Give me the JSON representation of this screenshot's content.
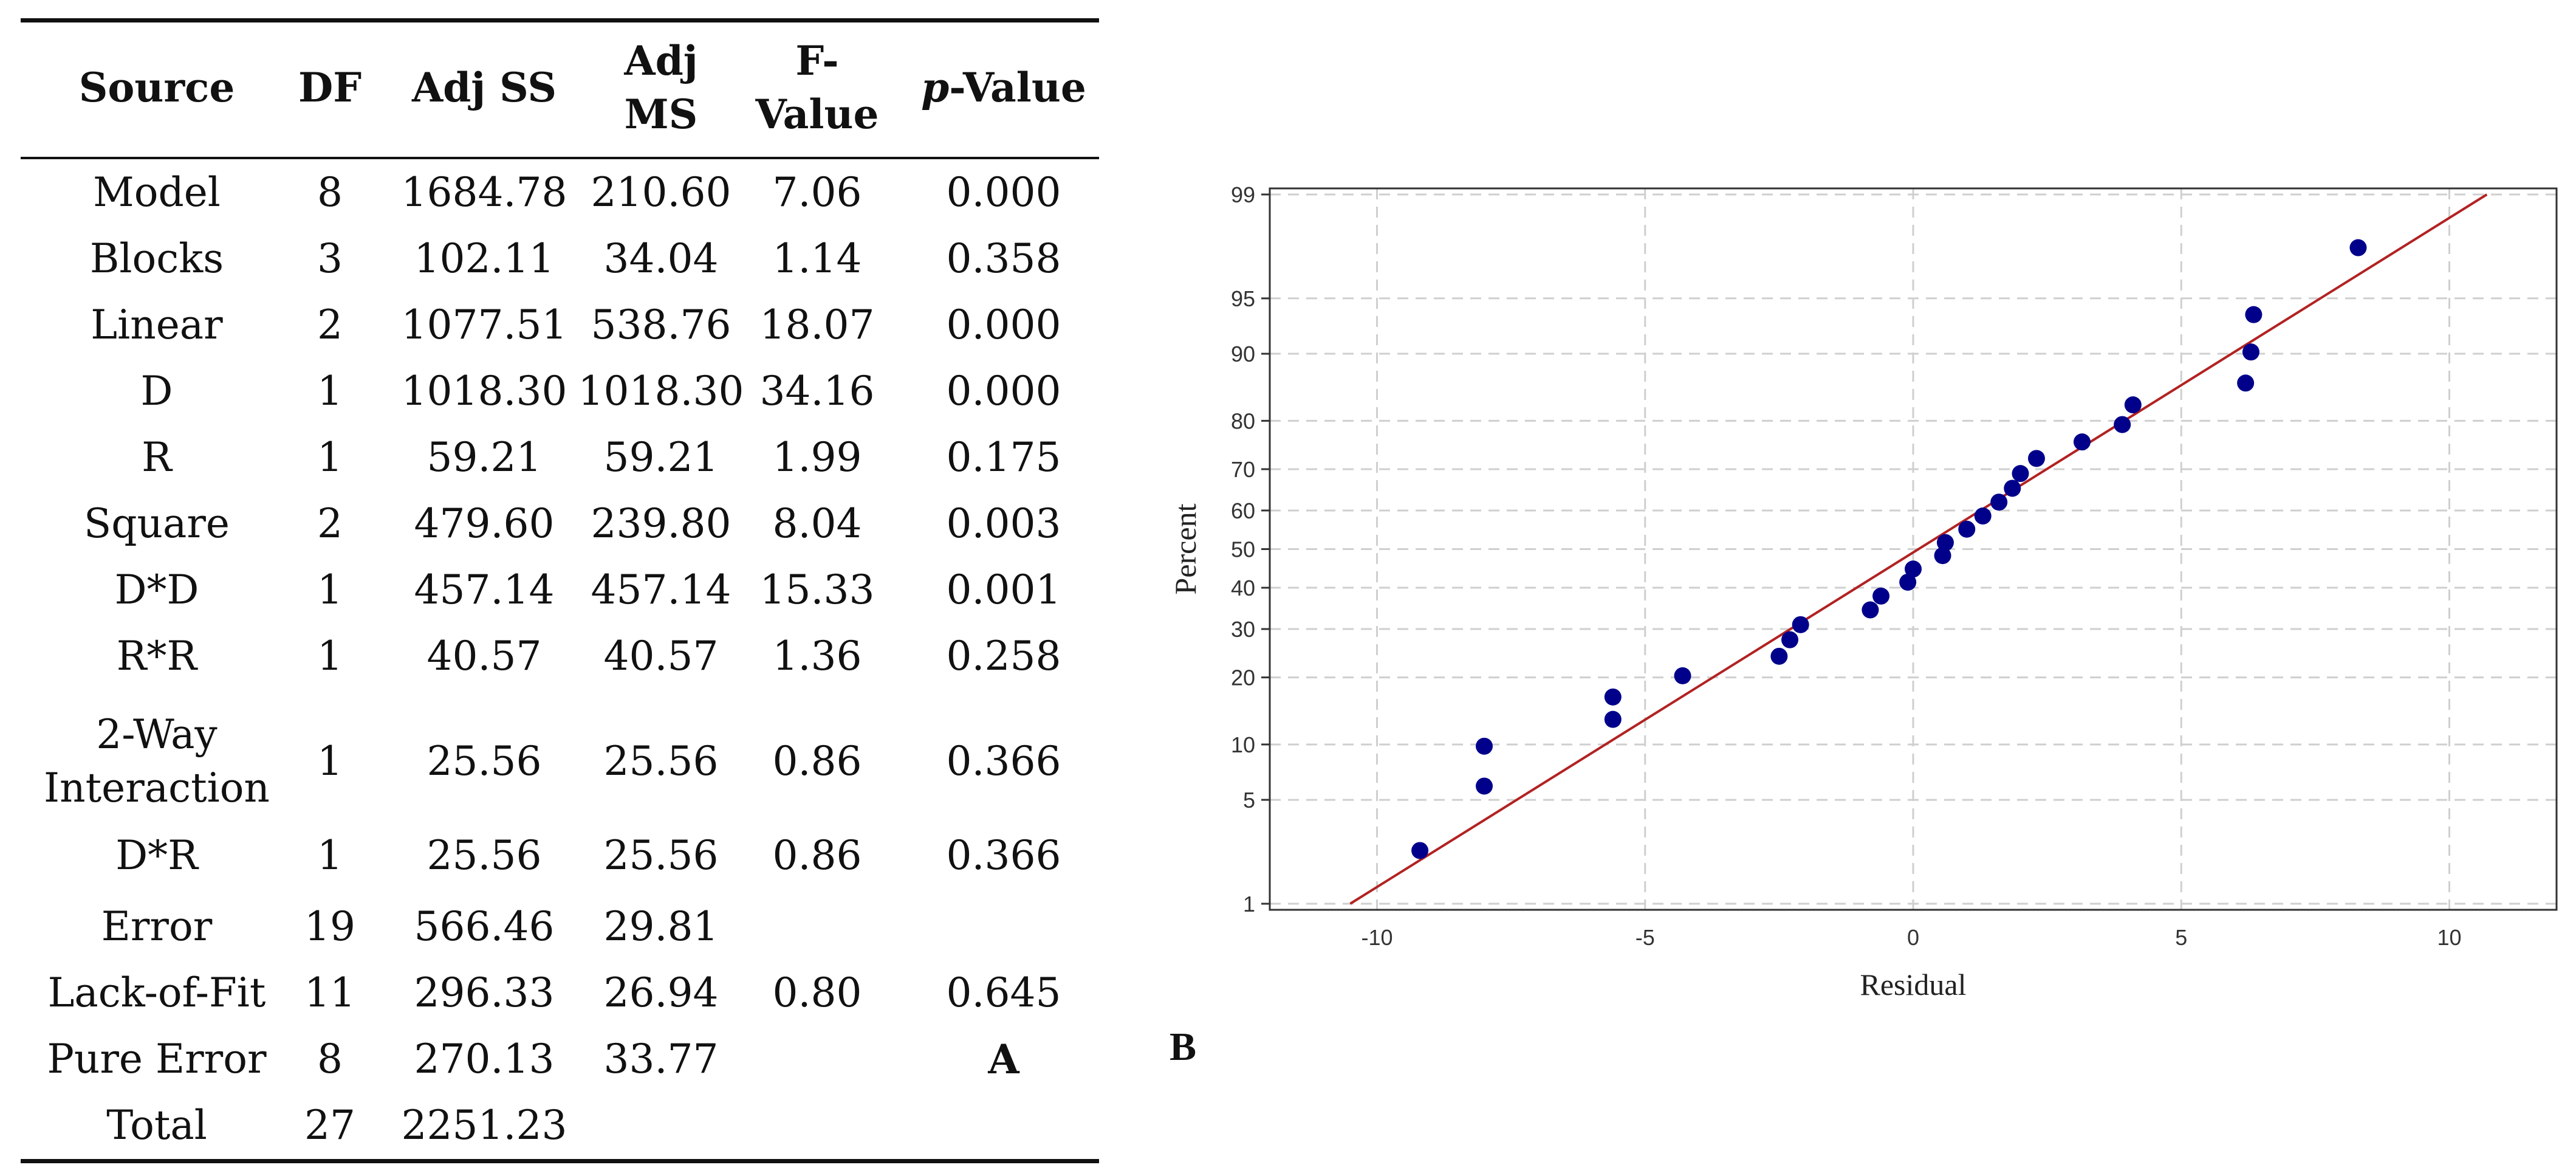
{
  "table": {
    "headers": [
      "Source",
      "DF",
      "Adj SS",
      "Adj\nMS",
      "F-\nValue",
      "p-Value"
    ],
    "rows": [
      [
        "Model",
        "8",
        "1684.78",
        "210.60",
        "7.06",
        "0.000"
      ],
      [
        "Blocks",
        "3",
        "102.11",
        "34.04",
        "1.14",
        "0.358"
      ],
      [
        "Linear",
        "2",
        "1077.51",
        "538.76",
        "18.07",
        "0.000"
      ],
      [
        "D",
        "1",
        "1018.30",
        "1018.30",
        "34.16",
        "0.000"
      ],
      [
        "R",
        "1",
        "59.21",
        "59.21",
        "1.99",
        "0.175"
      ],
      [
        "Square",
        "2",
        "479.60",
        "239.80",
        "8.04",
        "0.003"
      ],
      [
        "D*D",
        "1",
        "457.14",
        "457.14",
        "15.33",
        "0.001"
      ],
      [
        "R*R",
        "1",
        "40.57",
        "40.57",
        "1.36",
        "0.258"
      ],
      [
        "2-Way\nInteraction",
        "1",
        "25.56",
        "25.56",
        "0.86",
        "0.366"
      ],
      [
        "D*R",
        "1",
        "25.56",
        "25.56",
        "0.86",
        "0.366"
      ],
      [
        "Error",
        "19",
        "566.46",
        "29.81",
        "",
        ""
      ],
      [
        "Lack-of-Fit",
        "11",
        "296.33",
        "26.94",
        "0.80",
        "0.645"
      ],
      [
        "Pure Error",
        "8",
        "270.13",
        "33.77",
        "",
        "A"
      ],
      [
        "Total",
        "27",
        "2251.23",
        "",
        "",
        ""
      ]
    ]
  },
  "panel_b_label": "B",
  "chart_data": {
    "type": "scatter",
    "subtype": "normal-probability-plot",
    "title": "",
    "xlabel": "Residual",
    "ylabel": "Percent",
    "xlim": [
      -12,
      12
    ],
    "x_ticks": [
      -10,
      -5,
      0,
      5,
      10
    ],
    "y_ticks": [
      1,
      5,
      10,
      20,
      30,
      40,
      50,
      60,
      70,
      80,
      90,
      95,
      99
    ],
    "grid": true,
    "points": [
      {
        "x": -9.2,
        "y": 2.4
      },
      {
        "x": -8.0,
        "y": 6.0
      },
      {
        "x": -8.0,
        "y": 9.8
      },
      {
        "x": -5.6,
        "y": 13.2
      },
      {
        "x": -5.6,
        "y": 16.6
      },
      {
        "x": -4.3,
        "y": 20.3
      },
      {
        "x": -2.5,
        "y": 24.1
      },
      {
        "x": -2.3,
        "y": 27.6
      },
      {
        "x": -2.1,
        "y": 31.0
      },
      {
        "x": -0.8,
        "y": 34.5
      },
      {
        "x": -0.6,
        "y": 37.9
      },
      {
        "x": -0.1,
        "y": 41.4
      },
      {
        "x": 0.0,
        "y": 44.8
      },
      {
        "x": 0.55,
        "y": 48.3
      },
      {
        "x": 0.6,
        "y": 51.7
      },
      {
        "x": 1.0,
        "y": 55.2
      },
      {
        "x": 1.3,
        "y": 58.6
      },
      {
        "x": 1.6,
        "y": 62.1
      },
      {
        "x": 1.85,
        "y": 65.5
      },
      {
        "x": 2.0,
        "y": 69.0
      },
      {
        "x": 2.3,
        "y": 72.4
      },
      {
        "x": 3.15,
        "y": 75.9
      },
      {
        "x": 3.9,
        "y": 79.3
      },
      {
        "x": 4.1,
        "y": 82.8
      },
      {
        "x": 6.2,
        "y": 86.2
      },
      {
        "x": 6.3,
        "y": 90.2
      },
      {
        "x": 6.35,
        "y": 93.8
      },
      {
        "x": 8.3,
        "y": 97.6
      }
    ],
    "fit_line": {
      "x_at_p1": -10.5,
      "x_at_p99": 10.7
    },
    "colors": {
      "points": "#00008B",
      "fit_line": "#B22222",
      "grid": "#cfcfcf"
    }
  }
}
